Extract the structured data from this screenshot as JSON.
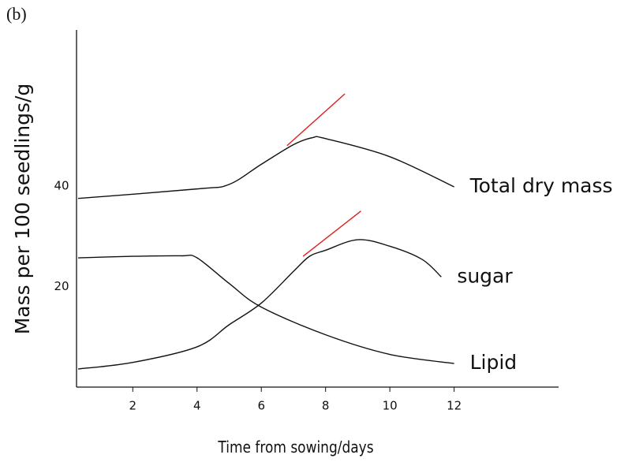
{
  "chart_data": {
    "type": "line",
    "panel_label": "(b)",
    "xlabel": "Time from sowing/days",
    "ylabel": "Mass per 100 seedlings/g",
    "xlim": [
      0.25,
      15.25
    ],
    "ylim": [
      0,
      71
    ],
    "xticks": [
      2,
      4,
      6,
      8,
      10,
      12
    ],
    "yticks": [
      20,
      40
    ],
    "series": [
      {
        "name": "Total dry mass",
        "color": "#111111",
        "x": [
          0.3,
          4,
          5,
          6,
          7,
          7.6,
          8,
          10,
          12
        ],
        "values": [
          37.5,
          39.4,
          40.3,
          44.3,
          48.2,
          49.6,
          49.4,
          45.8,
          39.8
        ]
      },
      {
        "name": "sugar",
        "color": "#111111",
        "x": [
          0.3,
          2,
          4,
          5,
          6,
          7,
          7.5,
          8,
          9,
          10,
          11,
          11.6
        ],
        "values": [
          3.6,
          4.9,
          8,
          12.4,
          16.7,
          23,
          26,
          27.2,
          29.3,
          28,
          25.4,
          21.9
        ]
      },
      {
        "name": "Lipid",
        "color": "#111111",
        "x": [
          0.3,
          2,
          3.5,
          4,
          5,
          6,
          8,
          10,
          12
        ],
        "values": [
          25.7,
          26,
          26.1,
          25.7,
          20.6,
          15.9,
          10.4,
          6.5,
          4.7
        ]
      }
    ],
    "tangent_lines": [
      {
        "color": "#e02020",
        "x": [
          6.8,
          8.6
        ],
        "values": [
          48,
          58.3
        ]
      },
      {
        "color": "#e02020",
        "x": [
          7.3,
          9.1
        ],
        "values": [
          26,
          35
        ]
      }
    ]
  }
}
